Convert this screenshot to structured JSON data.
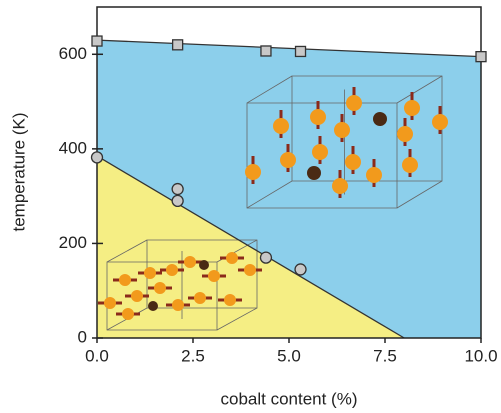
{
  "chart_data": {
    "type": "scatter",
    "xlabel": "cobalt content (%)",
    "ylabel": "temperature (K)",
    "xlim": [
      0,
      10
    ],
    "ylim": [
      0,
      700
    ],
    "xticks": [
      {
        "value": 0,
        "label": "0.0"
      },
      {
        "value": 2.5,
        "label": "2.5"
      },
      {
        "value": 5,
        "label": "5.0"
      },
      {
        "value": 7.5,
        "label": "7.5"
      },
      {
        "value": 10,
        "label": "10.0"
      }
    ],
    "yticks": [
      0,
      200,
      400,
      600
    ],
    "series": [
      {
        "marker": "square",
        "color": "#c8c8c8",
        "x": [
          0,
          2.1,
          4.4,
          5.3,
          10
        ],
        "values": [
          628,
          620,
          607,
          606,
          595
        ]
      },
      {
        "marker": "circle",
        "color": "#c8c8c8",
        "x": [
          0,
          2.1,
          2.1,
          4.4,
          5.3
        ],
        "values": [
          382,
          315,
          290,
          170,
          145
        ]
      }
    ],
    "boundaries": [
      {
        "x": [
          0,
          10
        ],
        "values": [
          630,
          595
        ]
      },
      {
        "x": [
          0,
          8
        ],
        "values": [
          385,
          0
        ]
      }
    ],
    "region_colors": {
      "upper": "#8ccfeb",
      "lower": "#f5ee84"
    }
  }
}
